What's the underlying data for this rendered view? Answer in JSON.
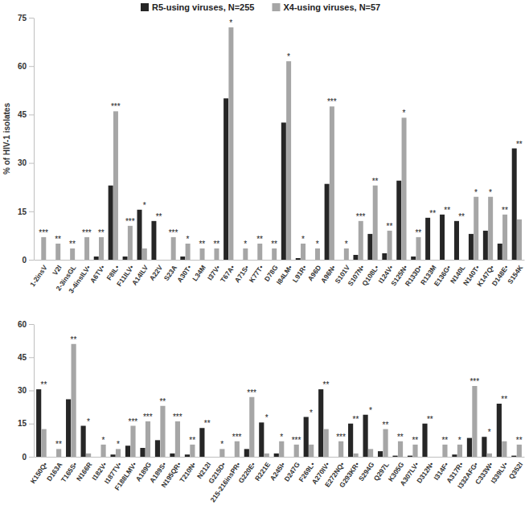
{
  "chart_data": [
    {
      "type": "bar",
      "y_label": "% of HIV-1 isolates",
      "categories": [
        "1-2insV",
        "V2I",
        "2-3insGL",
        "3-4insILV•",
        "A6TV•",
        "F8IL•",
        "F11ILV•",
        "A14ILV",
        "A22V",
        "S23A",
        "A30T•",
        "L34M",
        "I37V•",
        "T67A•",
        "A71S•",
        "K77T•",
        "D78G",
        "I84LM•",
        "L91R•",
        "A96D",
        "A96N•",
        "S101V",
        "S107N•",
        "Q108L•",
        "I124V•",
        "S125N•",
        "R133D•",
        "R133M",
        "E136G•",
        "N140L",
        "N140T•",
        "K147Q•",
        "D148E•",
        "S154K"
      ],
      "series": [
        {
          "name": "R5-using viruses, N=255",
          "color": "#262626",
          "values": [
            0,
            0,
            0,
            0,
            1,
            23,
            1,
            15.5,
            12,
            0,
            1,
            0,
            0,
            50,
            0,
            0,
            0,
            42.5,
            0.5,
            0,
            23.5,
            0,
            1.5,
            8,
            2,
            24.5,
            1,
            13,
            14,
            12,
            8,
            9,
            5,
            34.5
          ]
        },
        {
          "name": "X4-using viruses, N=57",
          "color": "#a6a6a6",
          "values": [
            7,
            5,
            3.5,
            7,
            7,
            46,
            10.5,
            3.5,
            0,
            7,
            5,
            3.5,
            3.5,
            72,
            3.5,
            5,
            3.5,
            61.5,
            5,
            3.5,
            47.5,
            3.5,
            12,
            23,
            9,
            44,
            7,
            0,
            0,
            0,
            19.5,
            19.5,
            14,
            12.5
          ]
        }
      ],
      "annotations": [
        "***",
        "**",
        "**",
        "***",
        "**",
        "***",
        "***",
        "*",
        "**",
        "***",
        "*",
        "**",
        "**",
        "*",
        "*",
        "**",
        "**",
        "*",
        "*",
        "*",
        "***",
        "*",
        "***",
        "**",
        "**",
        "*",
        "**",
        "**",
        "**",
        "**",
        "*",
        "*",
        "**",
        "**"
      ],
      "ylim": [
        0,
        75
      ],
      "yticks": [
        0,
        15,
        30,
        45,
        60,
        75
      ],
      "grid": false,
      "legend": "top"
    },
    {
      "type": "bar",
      "categories": [
        "K150Q•",
        "D163A",
        "T165S•",
        "N166R",
        "I182V•",
        "I187TV•",
        "F188LMV•",
        "A189G",
        "A189S•",
        "N195QR•",
        "T210N•",
        "N212I",
        "G215D•",
        "215-216insPR•",
        "G220E•",
        "R221E",
        "A245I•",
        "D247G",
        "F269L•",
        "A270IV•",
        "E272NQ•",
        "G293KR•",
        "S294G",
        "Q297L",
        "K305G",
        "A307LV•",
        "D312N•",
        "I314F•",
        "A317R•",
        "I332AFG•",
        "C333W•",
        "I339LV•",
        "Q352I"
      ],
      "series": [
        {
          "color": "#262626",
          "values": [
            30.5,
            0,
            26,
            14,
            0,
            1,
            5,
            4,
            7.5,
            1.5,
            1,
            13,
            0,
            0,
            3.5,
            15.5,
            1.5,
            0,
            18,
            30.5,
            0,
            15,
            19,
            2.5,
            0.5,
            0.5,
            15,
            0,
            1,
            8.5,
            9,
            24,
            0.5
          ]
        },
        {
          "color": "#a6a6a6",
          "values": [
            12.5,
            3.5,
            51,
            1.5,
            5.5,
            3.5,
            14,
            16,
            23,
            16,
            5.5,
            0,
            3.5,
            7,
            27,
            1.5,
            7,
            5.5,
            5.5,
            12.5,
            7,
            1.5,
            3.5,
            12.5,
            7,
            5.5,
            0,
            5.5,
            5.5,
            32,
            1.5,
            7,
            5.5
          ]
        }
      ],
      "annotations": [
        "**",
        "**",
        "**",
        "*",
        "*",
        "*",
        "***",
        "***",
        "**",
        "***",
        "**",
        "**",
        "*",
        "***",
        "***",
        "*",
        "*",
        "***",
        "*",
        "**",
        "***",
        "**",
        "*",
        "**",
        "**",
        "**",
        "**",
        "**",
        "*",
        "***",
        "*",
        "**",
        "**"
      ],
      "ylim": [
        0,
        60
      ],
      "yticks": [
        0,
        15,
        30,
        45,
        60
      ],
      "grid": false
    }
  ]
}
